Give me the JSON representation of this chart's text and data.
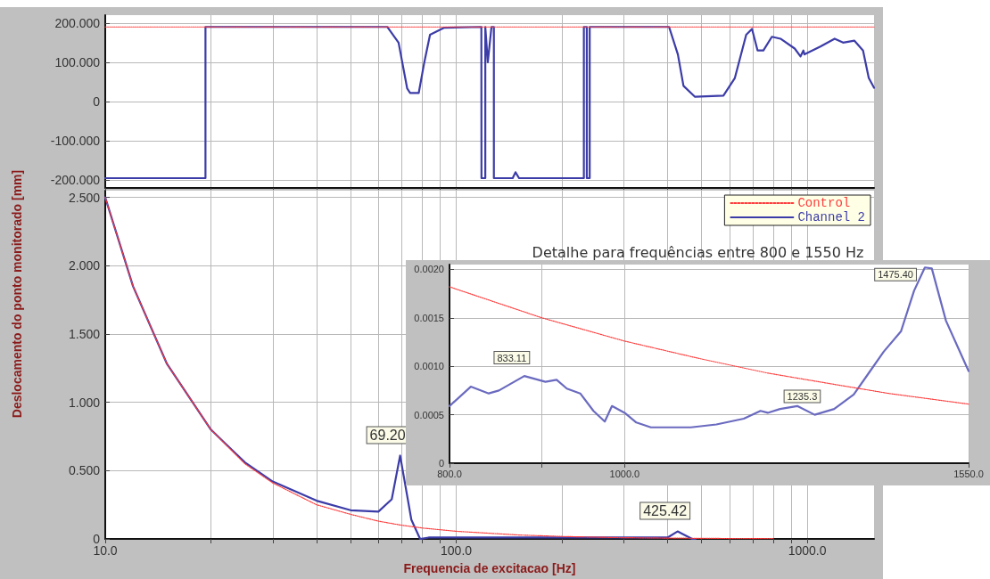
{
  "chart_data": [
    {
      "type": "line",
      "xlim": [
        10,
        1550
      ],
      "xticks": [
        {
          "value": 10,
          "label": null
        },
        {
          "value": 20,
          "label": null
        },
        {
          "value": 30,
          "label": null
        },
        {
          "value": 40,
          "label": null
        },
        {
          "value": 50,
          "label": null
        },
        {
          "value": 60,
          "label": null
        },
        {
          "value": 70,
          "label": null
        },
        {
          "value": 80,
          "label": null
        },
        {
          "value": 90,
          "label": null
        },
        {
          "value": 100,
          "label": null
        },
        {
          "value": 200,
          "label": null
        },
        {
          "value": 300,
          "label": null
        },
        {
          "value": 400,
          "label": null
        },
        {
          "value": 500,
          "label": null
        },
        {
          "value": 600,
          "label": null
        },
        {
          "value": 700,
          "label": null
        },
        {
          "value": 800,
          "label": null
        },
        {
          "value": 900,
          "label": null
        },
        {
          "value": 1000,
          "label": null
        }
      ],
      "ylim": [
        -220,
        220
      ],
      "yticks": [
        {
          "value": -200,
          "label": "-200.000"
        },
        {
          "value": -100,
          "label": "-100.000"
        },
        {
          "value": 0,
          "label": "0"
        },
        {
          "value": 100,
          "label": "100.000"
        },
        {
          "value": 200,
          "label": "200.000"
        }
      ],
      "log": "x",
      "grid": true,
      "tick_labels": "y",
      "marker": "none",
      "series": [
        {
          "color": "#ff3b3b",
          "line_style": "dotted",
          "x": [
            10,
            1550
          ],
          "values": [
            190,
            190
          ]
        },
        {
          "color": "#3c3ca8",
          "line_style": "solid",
          "x": [
            10,
            19.3,
            19.3,
            63.6,
            68.5,
            72.5,
            73.9,
            78.2,
            81.1,
            84.2,
            92.5,
            117.9,
            118,
            118,
            121,
            121,
            123,
            126,
            128,
            128,
            144.8,
            147.5,
            151,
            227,
            231,
            231,
            235.5,
            235.5,
            240,
            240,
            404,
            428,
            444,
            479,
            577,
            622,
            670,
            696,
            722,
            750,
            793,
            839,
            921,
            957,
            975,
            982,
            1090,
            1197,
            1265,
            1363,
            1442,
            1497,
            1550
          ],
          "values": [
            -195,
            -195,
            190,
            190,
            150,
            33,
            22,
            22,
            100,
            170,
            188,
            190,
            190,
            -195,
            -195,
            190,
            100,
            190,
            190,
            -195,
            -195,
            -180,
            -195,
            -195,
            -195,
            190,
            190,
            -195,
            -195,
            190,
            190,
            120,
            40,
            12,
            15,
            60,
            170,
            185,
            130,
            130,
            165,
            160,
            135,
            115,
            130,
            120,
            140,
            160,
            150,
            155,
            130,
            60,
            35
          ]
        }
      ]
    },
    {
      "type": "line",
      "xlabel": "Frequencia de excitacao [Hz]",
      "ylabel": "Deslocamento do ponto monitorado [mm]",
      "xlim": [
        10,
        1550
      ],
      "xticks": [
        {
          "value": 10,
          "label": "10.0"
        },
        {
          "value": 20,
          "label": null
        },
        {
          "value": 30,
          "label": null
        },
        {
          "value": 40,
          "label": null
        },
        {
          "value": 50,
          "label": null
        },
        {
          "value": 60,
          "label": null
        },
        {
          "value": 70,
          "label": null
        },
        {
          "value": 80,
          "label": null
        },
        {
          "value": 90,
          "label": null
        },
        {
          "value": 100,
          "label": "100.0"
        },
        {
          "value": 200,
          "label": null
        },
        {
          "value": 300,
          "label": null
        },
        {
          "value": 400,
          "label": null
        },
        {
          "value": 500,
          "label": null
        },
        {
          "value": 600,
          "label": null
        },
        {
          "value": 700,
          "label": null
        },
        {
          "value": 800,
          "label": null
        },
        {
          "value": 900,
          "label": null
        },
        {
          "value": 1000,
          "label": "1000.0"
        }
      ],
      "ylim": [
        0,
        2.55
      ],
      "yticks": [
        {
          "value": 0,
          "label": "0"
        },
        {
          "value": 0.5,
          "label": "0.500"
        },
        {
          "value": 1,
          "label": "1.000"
        },
        {
          "value": 1.5,
          "label": "1.500"
        },
        {
          "value": 2,
          "label": "2.000"
        },
        {
          "value": 2.5,
          "label": "2.500"
        }
      ],
      "log": "x",
      "grid": true,
      "legend": "top right",
      "marker": "none",
      "annotations": [
        {
          "text": "69.20",
          "x": 69.2,
          "y": 0.61
        },
        {
          "text": "425.42",
          "x": 427,
          "y": 0.055
        }
      ],
      "series": [
        {
          "name": "Control",
          "color": "#ff3b3b",
          "line_style": "dotted",
          "x": [
            10,
            12,
            15,
            20,
            25,
            30,
            40,
            50,
            60,
            70,
            80,
            100,
            150,
            200,
            300,
            400,
            600,
            800
          ],
          "values": [
            2.5,
            1.85,
            1.28,
            0.8,
            0.55,
            0.41,
            0.25,
            0.18,
            0.13,
            0.1,
            0.08,
            0.056,
            0.029,
            0.018,
            0.009,
            0.006,
            0.003,
            0.002
          ]
        },
        {
          "name": "Channel 2",
          "color": "#3c3ca8",
          "line_style": "solid",
          "x": [
            10,
            12,
            15,
            20,
            25,
            30,
            40,
            50,
            60,
            65.5,
            67.9,
            69.2,
            71.3,
            74.5,
            78.9,
            83.4,
            100,
            200,
            300,
            400,
            427,
            470,
            480
          ],
          "values": [
            2.5,
            1.85,
            1.28,
            0.8,
            0.56,
            0.42,
            0.28,
            0.21,
            0.2,
            0.29,
            0.5,
            0.61,
            0.42,
            0.14,
            0,
            0.01,
            0.01,
            0.01,
            0.01,
            0.01,
            0.055,
            0,
            0
          ]
        }
      ]
    },
    {
      "type": "line",
      "title": "Detalhe para frequências entre 800 e 1550 Hz",
      "xlim": [
        800,
        1550
      ],
      "xticks": [
        {
          "value": 800,
          "label": "800.0"
        },
        {
          "value": 900,
          "label": null
        },
        {
          "value": 1000,
          "label": "1000.0"
        },
        {
          "value": 1550,
          "label": "1550.0"
        }
      ],
      "ylim": [
        0,
        0.00205
      ],
      "yticks": [
        {
          "value": 0,
          "label": "0"
        },
        {
          "value": 0.0005,
          "label": "0.0005"
        },
        {
          "value": 0.001,
          "label": "0.0010"
        },
        {
          "value": 0.0015,
          "label": "0.0015"
        },
        {
          "value": 0.002,
          "label": "0.0020"
        }
      ],
      "log": "x",
      "grid": true,
      "marker": "none",
      "annotations": [
        {
          "text": "833.11",
          "x": 880,
          "y": 0.0009
        },
        {
          "text": "1235.3",
          "x": 1274,
          "y": 0.0005
        },
        {
          "text": "1475.40",
          "x": 1466,
          "y": 0.00202
        }
      ],
      "series": [
        {
          "color": "#ff3b3b",
          "line_style": "dotted",
          "x": [
            800,
            900,
            1000,
            1100,
            1200,
            1300,
            1400,
            1550
          ],
          "values": [
            0.00182,
            0.0015,
            0.00126,
            0.00108,
            0.00093,
            0.00082,
            0.00072,
            0.00061
          ]
        },
        {
          "color": "#6a6ac0",
          "line_style": "solid",
          "x": [
            800,
            822,
            841,
            852,
            880,
            904,
            917,
            929,
            945,
            961,
            975,
            984,
            1000,
            1015,
            1034,
            1088,
            1124,
            1164,
            1189,
            1200,
            1219,
            1246,
            1274,
            1306,
            1339,
            1366,
            1391,
            1422,
            1446,
            1466,
            1479,
            1506,
            1544,
            1550
          ],
          "values": [
            0.00059,
            0.00079,
            0.00072,
            0.00075,
            0.0009,
            0.00084,
            0.00086,
            0.00077,
            0.00072,
            0.00054,
            0.00043,
            0.00059,
            0.00052,
            0.00042,
            0.00037,
            0.00037,
            0.0004,
            0.00046,
            0.00054,
            0.00052,
            0.00056,
            0.00059,
            0.0005,
            0.00056,
            0.00071,
            0.00094,
            0.00115,
            0.00136,
            0.00178,
            0.00202,
            0.00201,
            0.00147,
            0.00102,
            0.00095
          ]
        }
      ]
    }
  ]
}
